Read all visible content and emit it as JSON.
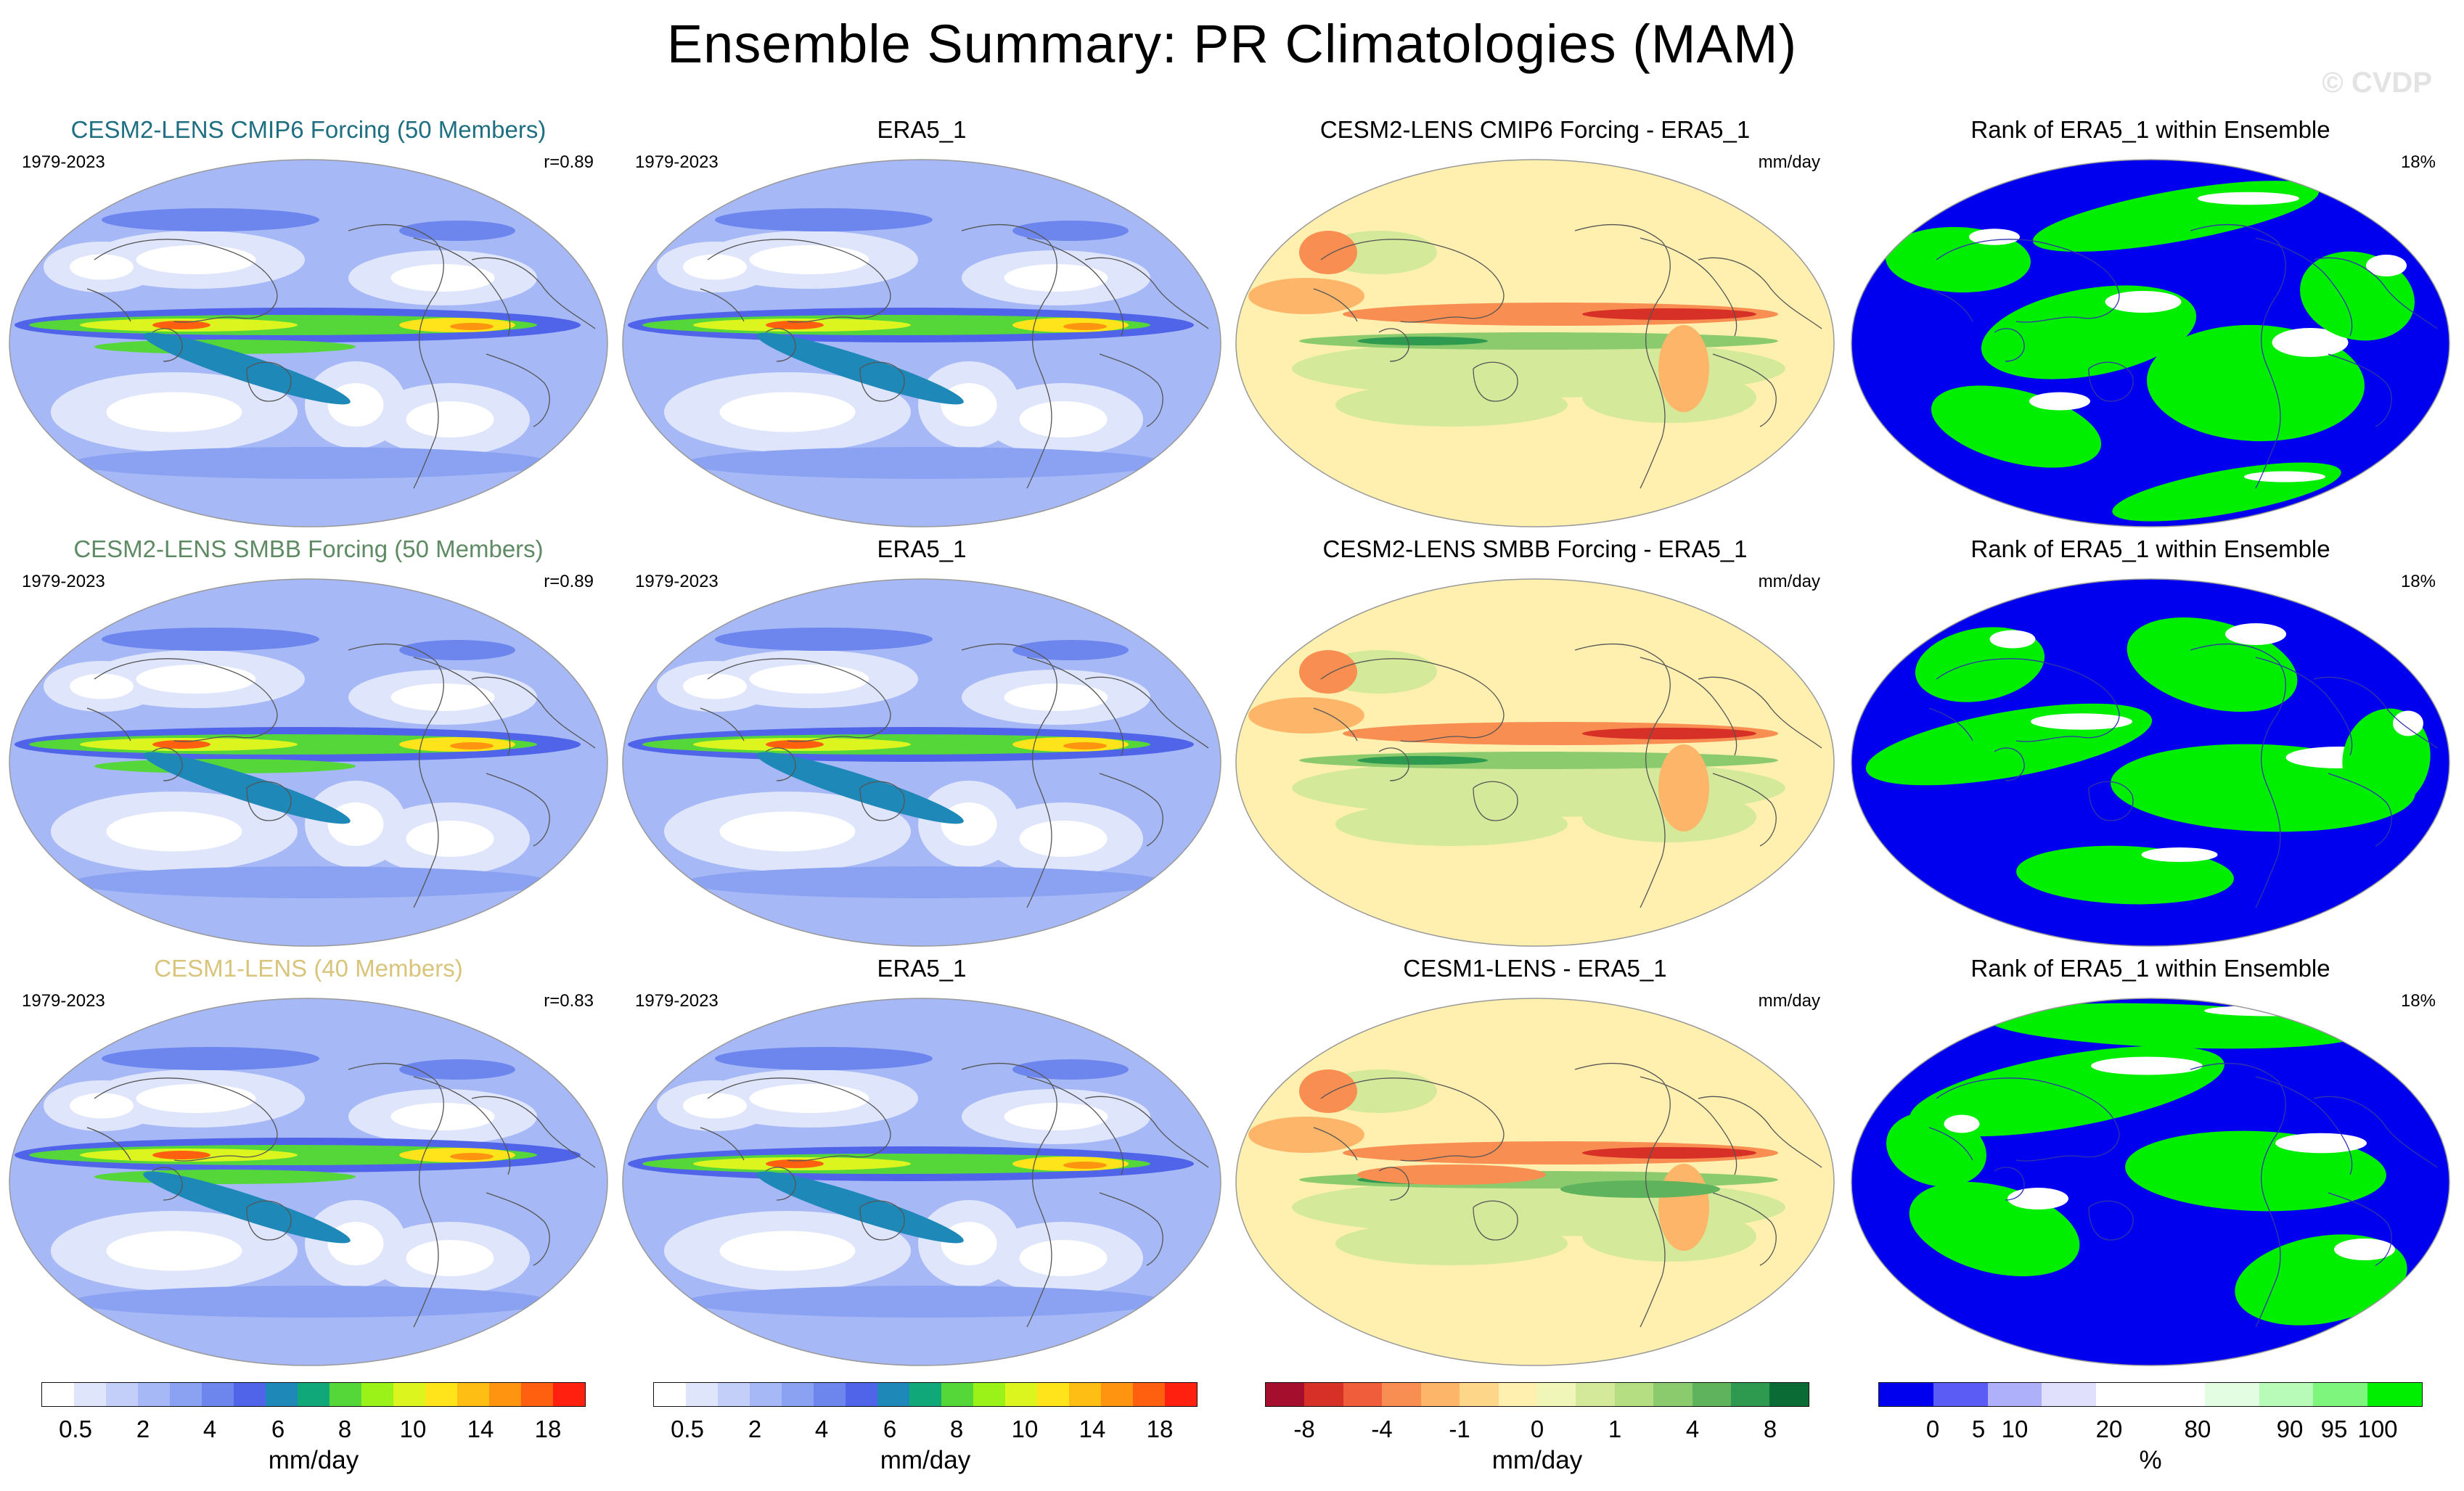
{
  "header": {
    "title": "Ensemble Summary: PR Climatologies (MAM)",
    "watermark": "© CVDP"
  },
  "rows": [
    {
      "model": {
        "title": "CESM2-LENS CMIP6 Forcing (50 Members)",
        "title_color": "#1f6f82",
        "period": "1979-2023",
        "corr": "r=0.89"
      },
      "obs": {
        "title": "ERA5_1",
        "period": "1979-2023"
      },
      "diff": {
        "title": "CESM2-LENS CMIP6 Forcing - ERA5_1",
        "units": "mm/day"
      },
      "rank": {
        "title": "Rank of ERA5_1 within Ensemble",
        "pct": "18%"
      }
    },
    {
      "model": {
        "title": "CESM2-LENS SMBB Forcing (50 Members)",
        "title_color": "#5e8a64",
        "period": "1979-2023",
        "corr": "r=0.89"
      },
      "obs": {
        "title": "ERA5_1",
        "period": "1979-2023"
      },
      "diff": {
        "title": "CESM2-LENS SMBB Forcing - ERA5_1",
        "units": "mm/day"
      },
      "rank": {
        "title": "Rank of ERA5_1 within Ensemble",
        "pct": "18%"
      }
    },
    {
      "model": {
        "title": "CESM1-LENS (40 Members)",
        "title_color": "#d8c47a",
        "period": "1979-2023",
        "corr": "r=0.83"
      },
      "obs": {
        "title": "ERA5_1",
        "period": "1979-2023"
      },
      "diff": {
        "title": "CESM1-LENS - ERA5_1",
        "units": "mm/day"
      },
      "rank": {
        "title": "Rank of ERA5_1 within Ensemble",
        "pct": "18%"
      }
    }
  ],
  "colorbars": {
    "precip": {
      "label": "mm/day",
      "colors": [
        "#ffffff",
        "#dfe5fb",
        "#c3cff8",
        "#a6b8f5",
        "#8aa2f1",
        "#6c86ee",
        "#4f64e8",
        "#1e88b8",
        "#10a878",
        "#55d73a",
        "#9bf218",
        "#dcf51e",
        "#ffe41c",
        "#ffbe14",
        "#ff9410",
        "#ff6010",
        "#ff2010"
      ],
      "ticks": [
        "0.5",
        "2",
        "4",
        "6",
        "8",
        "10",
        "14",
        "18"
      ]
    },
    "diff": {
      "label": "mm/day",
      "colors": [
        "#a50f2d",
        "#d73027",
        "#ef5d3b",
        "#f98e52",
        "#fdb569",
        "#fdd689",
        "#fff0b0",
        "#f0f6b8",
        "#d4ea9a",
        "#b5dd82",
        "#8ccb6d",
        "#5eb35c",
        "#2e9a4f",
        "#0a6b34"
      ],
      "ticks": [
        "-8",
        "-4",
        "-1",
        "0",
        "1",
        "4",
        "8"
      ]
    },
    "rank": {
      "label": "%",
      "colors": [
        "#0000ee",
        "#5a5cf5",
        "#aeb0fa",
        "#e0e0fd",
        "#ffffff",
        "#ffffff",
        "#e2fde2",
        "#b8fbb8",
        "#7ef67e",
        "#00ee00"
      ],
      "ticks": [
        "0",
        "5",
        "10",
        "20",
        "80",
        "90",
        "95",
        "100"
      ]
    }
  }
}
